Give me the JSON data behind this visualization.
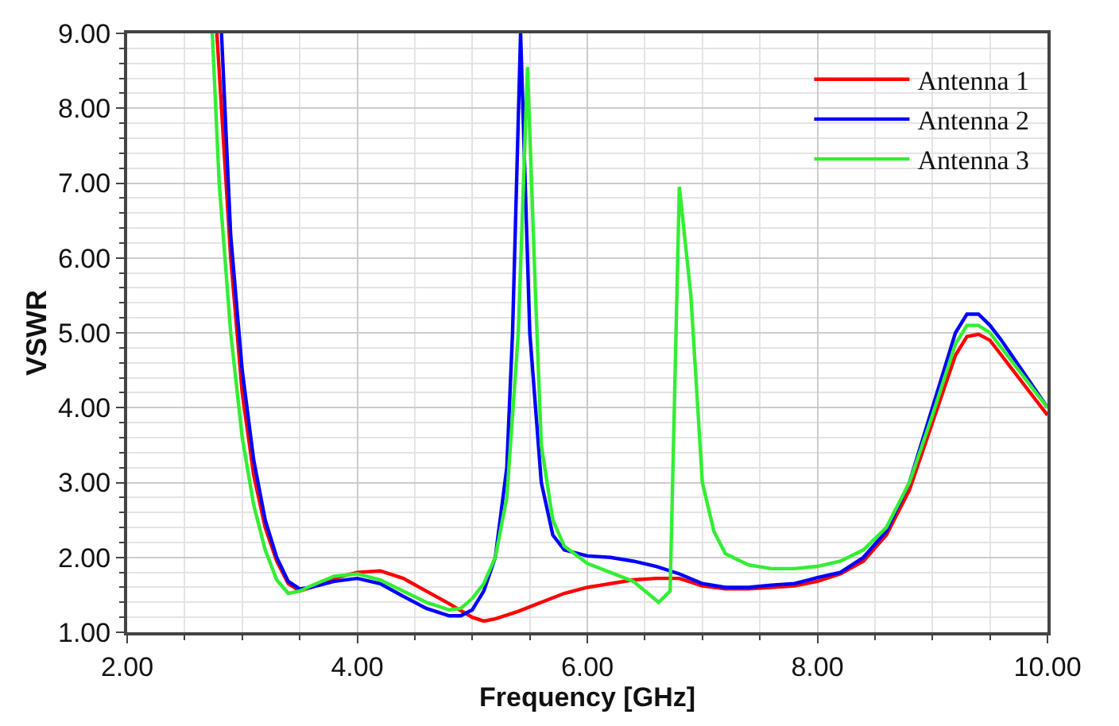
{
  "chart_data": {
    "type": "line",
    "xlabel": "Frequency [GHz]",
    "ylabel": "VSWR",
    "xlim": [
      2,
      10
    ],
    "ylim": [
      1,
      9
    ],
    "xticks": [
      {
        "value": 2,
        "label": "2.00"
      },
      {
        "value": 4,
        "label": "4.00"
      },
      {
        "value": 6,
        "label": "6.00"
      },
      {
        "value": 8,
        "label": "8.00"
      },
      {
        "value": 10,
        "label": "10.00"
      }
    ],
    "yticks": [
      {
        "value": 1,
        "label": "1.00"
      },
      {
        "value": 2,
        "label": "2.00"
      },
      {
        "value": 3,
        "label": "3.00"
      },
      {
        "value": 4,
        "label": "4.00"
      },
      {
        "value": 5,
        "label": "5.00"
      },
      {
        "value": 6,
        "label": "6.00"
      },
      {
        "value": 7,
        "label": "7.00"
      },
      {
        "value": 8,
        "label": "8.00"
      },
      {
        "value": 9,
        "label": "9.00"
      }
    ],
    "grid": true,
    "legend": "top right",
    "marker": "none",
    "line_style": "solid",
    "series": [
      {
        "name": "Antenna 1",
        "color": "#ff0000",
        "x": [
          2.78,
          2.9,
          3.0,
          3.1,
          3.2,
          3.3,
          3.4,
          3.5,
          3.6,
          3.8,
          4.0,
          4.2,
          4.4,
          4.6,
          4.8,
          5.0,
          5.1,
          5.2,
          5.4,
          5.6,
          5.8,
          6.0,
          6.2,
          6.4,
          6.6,
          6.8,
          7.0,
          7.2,
          7.4,
          7.6,
          7.8,
          8.0,
          8.2,
          8.4,
          8.6,
          8.8,
          9.0,
          9.2,
          9.3,
          9.4,
          9.5,
          9.6,
          9.8,
          10.0
        ],
        "values": [
          9.0,
          6.0,
          4.2,
          3.1,
          2.4,
          1.95,
          1.65,
          1.55,
          1.6,
          1.72,
          1.8,
          1.82,
          1.72,
          1.55,
          1.38,
          1.2,
          1.15,
          1.18,
          1.28,
          1.4,
          1.52,
          1.6,
          1.65,
          1.7,
          1.72,
          1.72,
          1.62,
          1.58,
          1.58,
          1.6,
          1.62,
          1.68,
          1.78,
          1.95,
          2.3,
          2.9,
          3.8,
          4.7,
          4.95,
          4.98,
          4.9,
          4.7,
          4.3,
          3.9
        ]
      },
      {
        "name": "Antenna 2",
        "color": "#0000ff",
        "x": [
          2.82,
          2.9,
          3.0,
          3.1,
          3.2,
          3.3,
          3.4,
          3.5,
          3.6,
          3.8,
          4.0,
          4.2,
          4.4,
          4.6,
          4.8,
          4.9,
          5.0,
          5.1,
          5.2,
          5.3,
          5.35,
          5.42,
          5.5,
          5.6,
          5.7,
          5.8,
          6.0,
          6.2,
          6.4,
          6.6,
          6.8,
          7.0,
          7.2,
          7.4,
          7.6,
          7.8,
          8.0,
          8.2,
          8.4,
          8.6,
          8.8,
          9.0,
          9.2,
          9.3,
          9.4,
          9.5,
          9.6,
          9.8,
          10.0
        ],
        "values": [
          9.0,
          6.3,
          4.5,
          3.3,
          2.5,
          2.0,
          1.68,
          1.58,
          1.6,
          1.68,
          1.72,
          1.65,
          1.48,
          1.32,
          1.22,
          1.22,
          1.3,
          1.55,
          2.0,
          3.2,
          5.0,
          9.0,
          5.0,
          3.0,
          2.3,
          2.1,
          2.02,
          2.0,
          1.95,
          1.88,
          1.78,
          1.65,
          1.6,
          1.6,
          1.63,
          1.65,
          1.73,
          1.8,
          2.0,
          2.35,
          3.0,
          4.0,
          5.0,
          5.25,
          5.25,
          5.1,
          4.9,
          4.45,
          4.0
        ]
      },
      {
        "name": "Antenna 3",
        "color": "#33ee33",
        "x": [
          2.74,
          2.8,
          2.9,
          3.0,
          3.1,
          3.2,
          3.3,
          3.4,
          3.5,
          3.6,
          3.8,
          4.0,
          4.2,
          4.4,
          4.6,
          4.8,
          4.9,
          5.0,
          5.1,
          5.2,
          5.3,
          5.4,
          5.48,
          5.55,
          5.6,
          5.7,
          5.8,
          6.0,
          6.2,
          6.4,
          6.62,
          6.72,
          6.8,
          6.9,
          7.0,
          7.1,
          7.2,
          7.4,
          7.6,
          7.8,
          8.0,
          8.2,
          8.4,
          8.6,
          8.8,
          9.0,
          9.2,
          9.3,
          9.4,
          9.5,
          9.6,
          9.8,
          10.0
        ],
        "values": [
          9.0,
          7.0,
          5.0,
          3.6,
          2.7,
          2.1,
          1.7,
          1.52,
          1.55,
          1.62,
          1.75,
          1.78,
          1.7,
          1.55,
          1.4,
          1.3,
          1.32,
          1.45,
          1.65,
          2.0,
          2.8,
          5.0,
          8.55,
          5.5,
          3.5,
          2.5,
          2.15,
          1.92,
          1.8,
          1.68,
          1.4,
          1.55,
          6.95,
          5.5,
          3.0,
          2.35,
          2.05,
          1.9,
          1.85,
          1.85,
          1.88,
          1.95,
          2.1,
          2.4,
          3.0,
          3.9,
          4.85,
          5.1,
          5.1,
          5.0,
          4.8,
          4.4,
          4.0
        ]
      }
    ]
  }
}
